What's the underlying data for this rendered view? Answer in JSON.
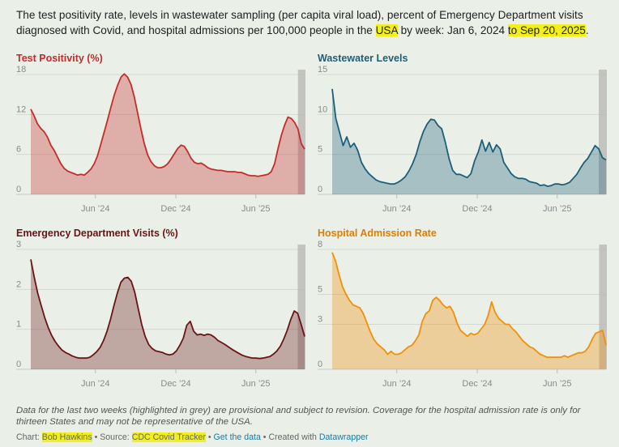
{
  "intro": {
    "text_before": "The test positivity rate, levels in wastewater sampling (per capita viral load), percent of Emergency Department visits diagnosed with Covid, and hospital admissions per 100,000 people in the ",
    "country": "USA",
    "text_middle": " by week: Jan 6, 2024 ",
    "range_end": "to Sep 20, 2025",
    "text_after": "."
  },
  "footer": {
    "note": "Data for the last two weeks (highlighted in grey) are provisional and subject to revision. Coverage for the hospital admission rate is only for thirteen States and may not be representative of the USA.",
    "chart_label": "Chart: ",
    "author": "Bob Hawkins",
    "sep1": " • Source: ",
    "source": "CDC Covid Tracker",
    "sep2": " • ",
    "get_data": "Get the data",
    "sep3": " • Created with ",
    "created_with": "Datawrapper"
  },
  "colors": {
    "test_positivity": "#c62b2b",
    "wastewater": "#1d5f78",
    "ed_visits": "#6b1414",
    "hospital": "#f0900a",
    "provisional_band": "#b5b5b2"
  },
  "chart_data": [
    {
      "type": "area",
      "title": "Test Positivity (%)",
      "x_start": "2024-01-06",
      "x_end": "2025-09-20",
      "x_ticks": [
        "Jun ’24",
        "Dec ’24",
        "Jun ’25"
      ],
      "y_ticks": [
        "0",
        "6",
        "12",
        "18"
      ],
      "ylim": [
        0,
        18
      ],
      "provisional_weeks": 2,
      "values": [
        12.8,
        11.8,
        10.6,
        9.9,
        9.4,
        8.6,
        7.4,
        6.6,
        5.6,
        4.6,
        3.9,
        3.5,
        3.3,
        3.1,
        2.9,
        3.0,
        2.9,
        3.3,
        3.8,
        4.6,
        5.8,
        7.6,
        9.4,
        11.2,
        13.1,
        14.9,
        16.4,
        17.6,
        18.1,
        17.6,
        16.5,
        14.6,
        12.2,
        9.8,
        7.6,
        5.9,
        4.9,
        4.3,
        4.0,
        4.0,
        4.2,
        4.6,
        5.3,
        6.1,
        6.9,
        7.4,
        7.2,
        6.4,
        5.4,
        4.8,
        4.6,
        4.7,
        4.4,
        4.0,
        3.8,
        3.7,
        3.6,
        3.6,
        3.5,
        3.4,
        3.4,
        3.4,
        3.3,
        3.3,
        3.1,
        2.9,
        2.8,
        2.8,
        2.7,
        2.8,
        2.9,
        3.0,
        3.4,
        4.6,
        6.8,
        8.8,
        10.4,
        11.6,
        11.4,
        10.8,
        9.8,
        7.6,
        6.8
      ]
    },
    {
      "type": "area",
      "title": "Wastewater Levels",
      "x_start": "2024-01-06",
      "x_end": "2025-09-20",
      "x_ticks": [
        "Jun ’24",
        "Dec ’24",
        "Jun ’25"
      ],
      "y_ticks": [
        "0",
        "5",
        "10",
        "15"
      ],
      "ylim": [
        0,
        15
      ],
      "provisional_weeks": 2,
      "values": [
        13.2,
        9.5,
        7.8,
        6.1,
        7.2,
        5.9,
        6.4,
        5.5,
        4.0,
        3.2,
        2.6,
        2.2,
        1.8,
        1.6,
        1.5,
        1.4,
        1.3,
        1.3,
        1.5,
        1.8,
        2.2,
        2.9,
        3.8,
        5.0,
        6.6,
        7.9,
        8.8,
        9.4,
        9.3,
        8.6,
        8.2,
        6.5,
        4.5,
        3.0,
        2.5,
        2.5,
        2.3,
        2.1,
        2.6,
        4.2,
        5.3,
        6.8,
        5.4,
        6.5,
        5.3,
        6.2,
        5.7,
        4.0,
        3.3,
        2.6,
        2.2,
        2.0,
        2.0,
        1.9,
        1.6,
        1.5,
        1.4,
        1.1,
        1.2,
        1.0,
        1.1,
        1.3,
        1.3,
        1.2,
        1.3,
        1.5,
        2.0,
        2.5,
        3.3,
        4.0,
        4.5,
        5.3,
        6.1,
        5.7,
        4.6,
        4.3
      ]
    },
    {
      "type": "area",
      "title": "Emergency Department Visits (%)",
      "x_start": "2024-01-06",
      "x_end": "2025-09-20",
      "x_ticks": [
        "Jun ’24",
        "Dec ’24",
        "Jun ’25"
      ],
      "y_ticks": [
        "0",
        "1",
        "2",
        "3"
      ],
      "ylim": [
        0,
        3
      ],
      "provisional_weeks": 2,
      "values": [
        2.75,
        2.3,
        1.9,
        1.6,
        1.3,
        1.05,
        0.85,
        0.7,
        0.58,
        0.48,
        0.42,
        0.38,
        0.33,
        0.3,
        0.28,
        0.28,
        0.28,
        0.3,
        0.36,
        0.44,
        0.55,
        0.72,
        0.95,
        1.25,
        1.6,
        1.92,
        2.18,
        2.28,
        2.3,
        2.2,
        1.92,
        1.52,
        1.12,
        0.82,
        0.62,
        0.52,
        0.46,
        0.44,
        0.42,
        0.38,
        0.36,
        0.38,
        0.46,
        0.6,
        0.78,
        1.1,
        1.2,
        0.95,
        0.86,
        0.88,
        0.85,
        0.88,
        0.86,
        0.8,
        0.72,
        0.67,
        0.62,
        0.56,
        0.5,
        0.45,
        0.4,
        0.35,
        0.32,
        0.3,
        0.28,
        0.28,
        0.27,
        0.28,
        0.3,
        0.32,
        0.38,
        0.46,
        0.58,
        0.76,
        0.98,
        1.25,
        1.46,
        1.4,
        1.12,
        0.82
      ]
    },
    {
      "type": "area",
      "title": "Hospital Admission Rate",
      "x_start": "2024-01-06",
      "x_end": "2025-09-20",
      "x_ticks": [
        "Jun ’24",
        "Dec ’24",
        "Jun ’25"
      ],
      "y_ticks": [
        "0",
        "3",
        "5",
        "8"
      ],
      "ylim": [
        0,
        8
      ],
      "provisional_weeks": 2,
      "values": [
        7.8,
        7.2,
        6.3,
        5.5,
        5.0,
        4.6,
        4.3,
        4.2,
        4.1,
        3.7,
        3.1,
        2.5,
        2.0,
        1.7,
        1.5,
        1.3,
        1.0,
        1.2,
        1.0,
        1.0,
        1.1,
        1.3,
        1.5,
        1.6,
        1.9,
        2.3,
        3.2,
        3.7,
        3.9,
        4.6,
        4.8,
        4.6,
        4.3,
        4.1,
        4.2,
        3.8,
        3.1,
        2.6,
        2.4,
        2.2,
        2.4,
        2.3,
        2.4,
        2.7,
        3.0,
        3.6,
        4.5,
        3.8,
        3.4,
        3.2,
        3.0,
        3.0,
        2.7,
        2.5,
        2.2,
        1.9,
        1.7,
        1.5,
        1.4,
        1.2,
        1.0,
        0.9,
        0.8,
        0.8,
        0.8,
        0.8,
        0.8,
        0.9,
        0.8,
        0.9,
        1.0,
        1.1,
        1.1,
        1.2,
        1.5,
        2.0,
        2.4,
        2.5,
        2.6,
        1.6
      ]
    }
  ]
}
